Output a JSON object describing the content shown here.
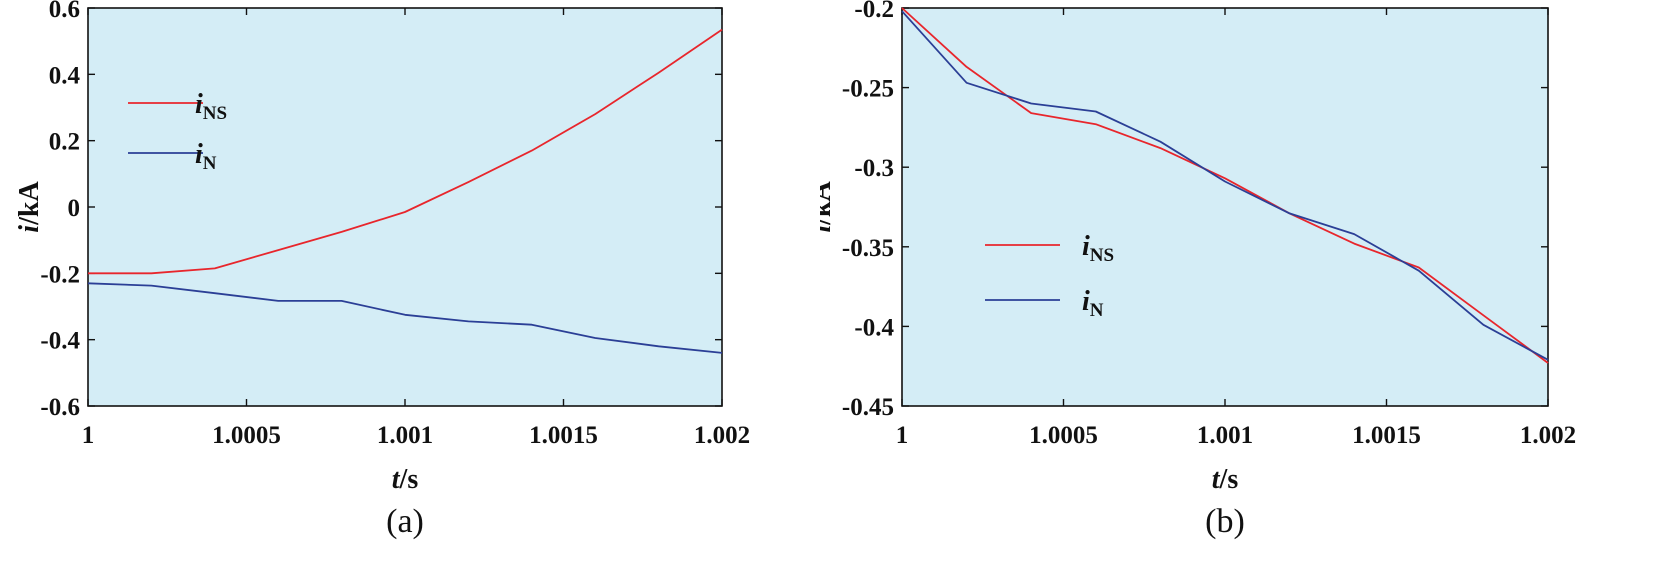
{
  "chart_data": [
    {
      "type": "line",
      "caption": "(a)",
      "xlabel": {
        "italic": "t",
        "rest": "/s"
      },
      "ylabel": {
        "italic": "i",
        "rest": "/kA"
      },
      "xlim": [
        1,
        1.002
      ],
      "ylim": [
        -0.6,
        0.6
      ],
      "xticks": [
        1,
        1.0005,
        1.001,
        1.0015,
        1.002
      ],
      "xtick_labels": [
        "1",
        "1.0005",
        "1.001",
        "1.0015",
        "1.002"
      ],
      "yticks": [
        0.6,
        0.4,
        0.2,
        0,
        -0.2,
        -0.4,
        -0.6
      ],
      "ytick_labels": [
        "0.6",
        "0.4",
        "0.2",
        "0",
        "-0.2",
        "-0.4",
        "-0.6"
      ],
      "grid": false,
      "legend_position": "upper-left",
      "series": [
        {
          "name": "iNS",
          "name_main": "i",
          "name_sub": "NS",
          "color": "#e8262c",
          "x": [
            1,
            1.0002,
            1.0004,
            1.0006,
            1.0008,
            1.001,
            1.0012,
            1.0014,
            1.0016,
            1.0018,
            1.002
          ],
          "y": [
            -0.2,
            -0.2,
            -0.185,
            -0.13,
            -0.075,
            -0.015,
            0.075,
            0.17,
            0.28,
            0.405,
            0.535
          ]
        },
        {
          "name": "iN",
          "name_main": "i",
          "name_sub": "N",
          "color": "#2b3f96",
          "x": [
            1,
            1.0002,
            1.0004,
            1.0006,
            1.0008,
            1.001,
            1.0012,
            1.0014,
            1.0016,
            1.0018,
            1.002
          ],
          "y": [
            -0.23,
            -0.237,
            -0.26,
            -0.283,
            -0.283,
            -0.325,
            -0.345,
            -0.355,
            -0.395,
            -0.42,
            -0.44
          ]
        }
      ]
    },
    {
      "type": "line",
      "caption": "(b)",
      "xlabel": {
        "italic": "t",
        "rest": "/s"
      },
      "ylabel": {
        "italic": "i",
        "rest": "/kA"
      },
      "xlim": [
        1,
        1.002
      ],
      "ylim": [
        -0.45,
        -0.2
      ],
      "xticks": [
        1,
        1.0005,
        1.001,
        1.0015,
        1.002
      ],
      "xtick_labels": [
        "1",
        "1.0005",
        "1.001",
        "1.0015",
        "1.002"
      ],
      "yticks": [
        -0.2,
        -0.25,
        -0.3,
        -0.35,
        -0.4,
        -0.45
      ],
      "ytick_labels": [
        "-0.2",
        "-0.25",
        "-0.3",
        "-0.35",
        "-0.4",
        "-0.45"
      ],
      "grid": false,
      "legend_position": "lower-left",
      "series": [
        {
          "name": "iNS",
          "name_main": "i",
          "name_sub": "NS",
          "color": "#e8262c",
          "x": [
            1,
            1.0002,
            1.0004,
            1.0006,
            1.0008,
            1.001,
            1.0012,
            1.0014,
            1.0016,
            1.0018,
            1.002
          ],
          "y": [
            -0.2,
            -0.237,
            -0.266,
            -0.273,
            -0.288,
            -0.307,
            -0.329,
            -0.348,
            -0.363,
            -0.393,
            -0.423
          ]
        },
        {
          "name": "iN",
          "name_main": "i",
          "name_sub": "N",
          "color": "#2b3f96",
          "x": [
            1,
            1.0002,
            1.0004,
            1.0006,
            1.0008,
            1.001,
            1.0012,
            1.0014,
            1.0016,
            1.0018,
            1.002
          ],
          "y": [
            -0.202,
            -0.247,
            -0.26,
            -0.265,
            -0.284,
            -0.309,
            -0.329,
            -0.342,
            -0.365,
            -0.399,
            -0.421
          ]
        }
      ]
    }
  ]
}
